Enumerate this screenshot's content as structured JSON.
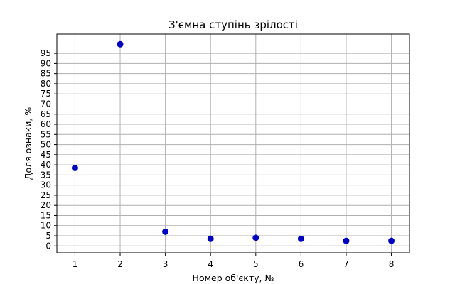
{
  "chart_data": {
    "type": "scatter",
    "title": "З'ємна ступінь зрілості",
    "xlabel": "Номер об'єкту, №",
    "ylabel": "Доля ознаки, %",
    "x": [
      1,
      2,
      3,
      4,
      5,
      6,
      7,
      8
    ],
    "y": [
      38.5,
      99.5,
      7,
      3.5,
      4,
      3.5,
      2.5,
      2.5
    ],
    "xlim": [
      0.6,
      8.4
    ],
    "ylim": [
      -3.4,
      104.5
    ],
    "xticks": [
      1,
      2,
      3,
      4,
      5,
      6,
      7,
      8
    ],
    "yticks": [
      0,
      5,
      10,
      15,
      20,
      25,
      30,
      35,
      40,
      45,
      50,
      55,
      60,
      65,
      70,
      75,
      80,
      85,
      90,
      95
    ],
    "grid": true,
    "marker_color": "#0000cc"
  }
}
